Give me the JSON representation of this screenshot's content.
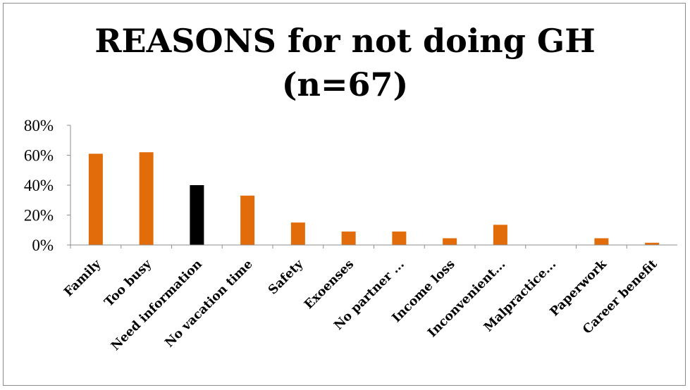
{
  "chart_data": {
    "type": "bar",
    "title_line1": "REASONS for not doing GH",
    "title_line2": "(n=67)",
    "xlabel": "",
    "ylabel": "",
    "categories": [
      "Family",
      "Too busy",
      "Need information",
      "No vacation time",
      "Safety",
      "Exoenses",
      "No partner ...",
      "Income loss",
      "Inconvenient...",
      "Malpractice...",
      "Paperwork",
      "Career benefit"
    ],
    "values": [
      0.61,
      0.62,
      0.4,
      0.33,
      0.15,
      0.09,
      0.09,
      0.045,
      0.135,
      0.0,
      0.045,
      0.015
    ],
    "value_format": "percent",
    "ylim": [
      0,
      0.8
    ],
    "yticks": [
      "0%",
      "20%",
      "40%",
      "60%",
      "80%"
    ],
    "grid": false,
    "legend": "none",
    "colors": {
      "default_bar": "#E36C0A",
      "highlight_bar": "#000000",
      "axis": "#8c8c8c"
    },
    "highlight_category": "Need information"
  }
}
